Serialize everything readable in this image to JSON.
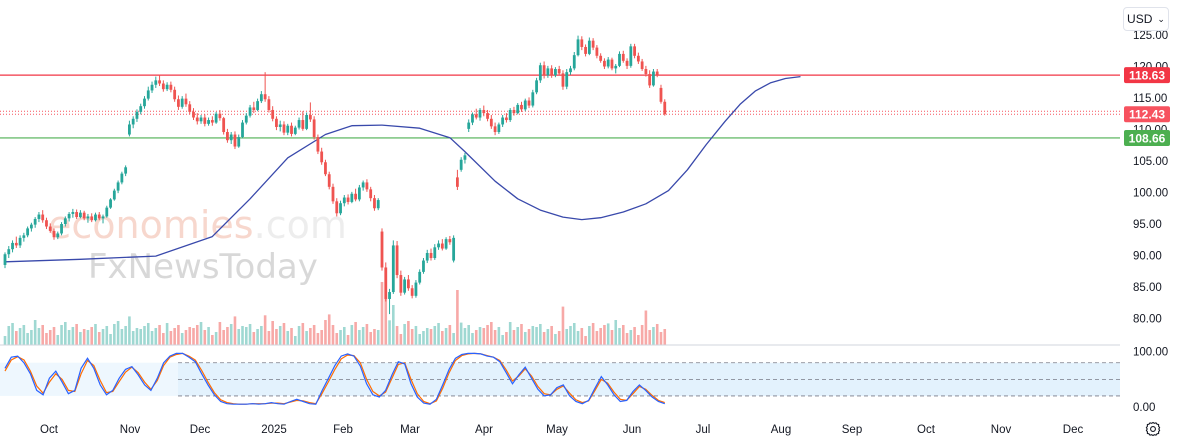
{
  "currency_select": {
    "value": "USD",
    "chevron_icon": "chevron-down-icon"
  },
  "settings_icon": "gear-icon",
  "watermark": {
    "line1_a": "economies",
    "line1_b": ".com",
    "line2": "FxNewsToday"
  },
  "colors": {
    "up": "#26a69a",
    "down": "#ef5350",
    "ma": "#3949ab",
    "resistance": "#f23645",
    "support": "#4caf50",
    "current": "#f7525f",
    "stoch_k": "#2962ff",
    "stoch_d": "#ff6d00",
    "stoch_band": "#e3f2fd",
    "vol_up": "#9fd8d2",
    "vol_down": "#f7a9a7"
  },
  "chart_data": {
    "type": "candlestick",
    "y_axis": {
      "ticks": [
        "125.00",
        "120.00",
        "115.00",
        "110.00",
        "105.00",
        "100.00",
        "95.00",
        "90.00",
        "85.00",
        "80.00"
      ],
      "ylim": [
        78,
        126
      ]
    },
    "x_axis": {
      "labels": [
        "Oct",
        "Nov",
        "Dec",
        "2025",
        "Feb",
        "Mar",
        "Apr",
        "May",
        "Jun",
        "Jul",
        "Aug",
        "Sep",
        "Oct",
        "Nov",
        "Dec"
      ]
    },
    "price_labels": [
      {
        "value": 118.63,
        "text": "118.63",
        "role": "resistance"
      },
      {
        "value": 112.43,
        "text": "112.43",
        "role": "last"
      },
      {
        "value": 108.66,
        "text": "108.66",
        "role": "support"
      }
    ],
    "current_price_dotted_lines": [
      112.43,
      112.9
    ],
    "ohlc": [
      [
        88.5,
        90.5,
        88,
        90.2
      ],
      [
        90.2,
        91.5,
        89.6,
        91
      ],
      [
        91,
        92.4,
        90.5,
        92
      ],
      [
        92,
        93,
        91.2,
        91.6
      ],
      [
        91.6,
        93.2,
        91.2,
        92.8
      ],
      [
        92.8,
        93.6,
        92.2,
        93.2
      ],
      [
        93.2,
        94.6,
        92.9,
        94.3
      ],
      [
        94.3,
        95.2,
        93.8,
        94.9
      ],
      [
        94.9,
        96.1,
        94.4,
        95.8
      ],
      [
        95.8,
        96.9,
        95.3,
        96.5
      ],
      [
        96.5,
        97.2,
        95.2,
        95.6
      ],
      [
        95.6,
        96,
        94.2,
        94.6
      ],
      [
        94.6,
        95.1,
        93.6,
        93.9
      ],
      [
        93.9,
        94.3,
        92.5,
        92.9
      ],
      [
        92.9,
        93.8,
        92.6,
        93.5
      ],
      [
        93.5,
        95.3,
        93.2,
        95
      ],
      [
        95,
        96.2,
        94.6,
        95.9
      ],
      [
        95.9,
        96.9,
        95.4,
        96.6
      ],
      [
        96.6,
        97.4,
        96,
        96.9
      ],
      [
        96.9,
        97.3,
        95.8,
        96.1
      ],
      [
        96.1,
        97.2,
        95.9,
        96.8
      ],
      [
        96.8,
        97.1,
        95.6,
        95.9
      ],
      [
        95.9,
        96.6,
        95.2,
        96.2
      ],
      [
        96.2,
        96.7,
        95.3,
        95.6
      ],
      [
        95.6,
        96.8,
        95.4,
        96.5
      ],
      [
        96.5,
        96.9,
        95.6,
        95.9
      ],
      [
        95.9,
        96.5,
        95.1,
        96.2
      ],
      [
        96.2,
        97.9,
        96,
        97.6
      ],
      [
        97.6,
        99.1,
        97.4,
        98.9
      ],
      [
        98.9,
        100.6,
        98.7,
        100.3
      ],
      [
        100.3,
        101.9,
        99.9,
        101.6
      ],
      [
        101.6,
        103.3,
        101.3,
        103
      ],
      [
        103,
        104.3,
        102.6,
        104
      ],
      [
        109.2,
        111.4,
        108.9,
        110.8
      ],
      [
        110.8,
        112.1,
        110.2,
        111.7
      ],
      [
        111.7,
        113.2,
        111.2,
        112.8
      ],
      [
        112.8,
        114.1,
        112.4,
        113.7
      ],
      [
        113.7,
        115.3,
        113.3,
        114.9
      ],
      [
        114.9,
        116.8,
        114.6,
        116.2
      ],
      [
        116.2,
        117.6,
        115.8,
        117.1
      ],
      [
        117.1,
        118.4,
        116.6,
        117.8
      ],
      [
        117.8,
        118.7,
        116.9,
        117.3
      ],
      [
        117.3,
        117.8,
        116,
        116.4
      ],
      [
        116.4,
        117.5,
        116.1,
        117.1
      ],
      [
        117.1,
        117.6,
        115.9,
        116.3
      ],
      [
        116.3,
        116.8,
        114.4,
        114.8
      ],
      [
        114.8,
        115.4,
        113.1,
        113.6
      ],
      [
        113.6,
        115.3,
        113.3,
        114.9
      ],
      [
        114.9,
        115.7,
        113.6,
        114
      ],
      [
        114,
        114.5,
        112.4,
        112.8
      ],
      [
        112.8,
        113.4,
        111.5,
        111.9
      ],
      [
        111.9,
        112.6,
        110.8,
        111.3
      ],
      [
        111.3,
        112.3,
        110.9,
        111.9
      ],
      [
        111.9,
        112.4,
        110.5,
        110.9
      ],
      [
        110.9,
        111.9,
        110.6,
        111.5
      ],
      [
        111.5,
        112.1,
        110.6,
        111.1
      ],
      [
        111.1,
        112.8,
        110.9,
        112.5
      ],
      [
        112.5,
        113.1,
        111.4,
        111.8
      ],
      [
        111.8,
        112,
        109.2,
        109.6
      ],
      [
        109.6,
        110.1,
        107.9,
        108.3
      ],
      [
        108.3,
        109.6,
        107.7,
        109.2
      ],
      [
        109.2,
        109.7,
        106.9,
        107.3
      ],
      [
        107.3,
        109.2,
        107.1,
        108.8
      ],
      [
        108.8,
        111.5,
        108.6,
        111.1
      ],
      [
        111.1,
        112.6,
        110.8,
        112.2
      ],
      [
        112.2,
        113.9,
        111.9,
        113.5
      ],
      [
        113.5,
        114.4,
        112.6,
        113.1
      ],
      [
        113.1,
        114.9,
        112.9,
        114.5
      ],
      [
        114.5,
        116.1,
        114.2,
        115.6
      ],
      [
        115.6,
        119.1,
        114.4,
        114.8
      ],
      [
        114.8,
        115.3,
        112.7,
        113.1
      ],
      [
        113.1,
        113.7,
        111.3,
        111.7
      ],
      [
        111.7,
        112.1,
        109.9,
        110.4
      ],
      [
        110.4,
        111.4,
        109.7,
        110.8
      ],
      [
        110.8,
        111.3,
        109.1,
        109.5
      ],
      [
        109.5,
        110.9,
        109.1,
        110.6
      ],
      [
        110.6,
        111.1,
        108.9,
        109.3
      ],
      [
        109.3,
        110.6,
        109.1,
        110.3
      ],
      [
        110.3,
        111.9,
        110,
        111.5
      ],
      [
        111.5,
        112.9,
        109.8,
        110.1
      ],
      [
        110.1,
        112.7,
        109.9,
        112.3
      ],
      [
        112.3,
        114.3,
        111.2,
        111.6
      ],
      [
        111.6,
        112.1,
        108.4,
        108.8
      ],
      [
        108.8,
        109.2,
        106.1,
        106.5
      ],
      [
        106.5,
        107.1,
        104.4,
        104.8
      ],
      [
        104.8,
        105.2,
        102.6,
        102.9
      ],
      [
        102.9,
        103.3,
        100.5,
        100.9
      ],
      [
        100.9,
        101.4,
        98.2,
        98.6
      ],
      [
        98.6,
        99.1,
        96.2,
        96.7
      ],
      [
        96.7,
        98.7,
        96.4,
        98.3
      ],
      [
        98.3,
        99.6,
        97.8,
        99.2
      ],
      [
        99.2,
        99.7,
        98.1,
        98.5
      ],
      [
        98.5,
        100.1,
        98.3,
        99.8
      ],
      [
        99.8,
        100.6,
        98.6,
        98.9
      ],
      [
        98.9,
        101.2,
        98.6,
        100.8
      ],
      [
        100.8,
        101.9,
        100.3,
        101.6
      ],
      [
        101.6,
        102.1,
        100.1,
        100.5
      ],
      [
        100.5,
        100.9,
        98.6,
        99.1
      ],
      [
        99.1,
        99.6,
        97.1,
        97.5
      ],
      [
        97.5,
        99.1,
        97.2,
        98.8
      ],
      [
        93.8,
        94.3,
        87.6,
        88.1
      ],
      [
        88.1,
        88.9,
        82.7,
        83.1
      ],
      [
        83.1,
        84.7,
        80.7,
        84.2
      ],
      [
        84.2,
        92.4,
        83.9,
        91.6
      ],
      [
        91.6,
        92.3,
        86.4,
        86.9
      ],
      [
        86.9,
        87.6,
        83.6,
        84.1
      ],
      [
        84.1,
        86.6,
        83.8,
        86.2
      ],
      [
        86.2,
        86.9,
        84.4,
        84.8
      ],
      [
        84.8,
        85.3,
        83.2,
        83.6
      ],
      [
        83.6,
        86.1,
        83.3,
        85.7
      ],
      [
        85.7,
        87.8,
        85.4,
        87.4
      ],
      [
        87.4,
        89.6,
        87.1,
        89.2
      ],
      [
        89.2,
        90.9,
        88.8,
        90.4
      ],
      [
        90.4,
        91.1,
        89.2,
        89.6
      ],
      [
        89.6,
        91.8,
        89.3,
        91.3
      ],
      [
        91.3,
        92.4,
        90.9,
        91.9
      ],
      [
        91.9,
        92.6,
        90.8,
        91.1
      ],
      [
        91.1,
        92.9,
        90.9,
        92.6
      ],
      [
        92.6,
        93.1,
        91.7,
        92.1
      ],
      [
        89.2,
        93.2,
        88.9,
        92.8
      ],
      [
        102.4,
        103.6,
        100.4,
        100.9
      ],
      [
        103.6,
        105.6,
        103.3,
        105.2
      ],
      [
        105.2,
        106.3,
        104.6,
        105.9
      ],
      [
        110.1,
        111.6,
        109.6,
        111.1
      ],
      [
        111.1,
        112.7,
        110.7,
        112.4
      ],
      [
        112.4,
        113.3,
        111.6,
        111.9
      ],
      [
        111.9,
        113.4,
        111.4,
        113.1
      ],
      [
        113.1,
        113.8,
        112.1,
        112.6
      ],
      [
        112.6,
        113.1,
        111.3,
        111.7
      ],
      [
        111.7,
        112.3,
        110.1,
        110.5
      ],
      [
        110.5,
        111.1,
        109.1,
        109.6
      ],
      [
        109.6,
        111.1,
        109.3,
        110.8
      ],
      [
        110.8,
        112.3,
        110.4,
        111.9
      ],
      [
        111.9,
        112.6,
        111.1,
        111.5
      ],
      [
        111.5,
        113.4,
        111.2,
        113.1
      ],
      [
        113.1,
        113.6,
        112.2,
        112.6
      ],
      [
        112.6,
        114.2,
        112.4,
        113.9
      ],
      [
        113.9,
        114.4,
        112.8,
        113.2
      ],
      [
        113.2,
        114.9,
        112.9,
        114.6
      ],
      [
        114.6,
        115.1,
        113.4,
        113.8
      ],
      [
        113.8,
        116.3,
        113.5,
        115.9
      ],
      [
        115.9,
        118.2,
        115.6,
        117.8
      ],
      [
        117.8,
        120.6,
        117.4,
        120.2
      ],
      [
        120.2,
        120.8,
        118.1,
        118.6
      ],
      [
        118.6,
        120.1,
        118.2,
        119.7
      ],
      [
        119.7,
        120.2,
        118.2,
        118.6
      ],
      [
        118.6,
        119.9,
        118.3,
        119.6
      ],
      [
        119.6,
        120.1,
        118.6,
        118.9
      ],
      [
        118.9,
        119.4,
        116.3,
        116.8
      ],
      [
        116.8,
        119.6,
        116.4,
        119.1
      ],
      [
        119.1,
        120.1,
        118.7,
        119.7
      ],
      [
        119.7,
        122.3,
        119.4,
        121.8
      ],
      [
        121.8,
        124.9,
        121.6,
        124.3
      ],
      [
        124.3,
        124.8,
        122.6,
        123.1
      ],
      [
        123.1,
        123.5,
        121.6,
        122
      ],
      [
        122,
        124.6,
        121.8,
        124.1
      ],
      [
        124.1,
        124.5,
        122.6,
        123
      ],
      [
        123,
        123.4,
        121.3,
        121.7
      ],
      [
        121.7,
        122.1,
        120.6,
        120.9
      ],
      [
        120.9,
        121.3,
        119.6,
        120
      ],
      [
        120,
        121.5,
        119.7,
        121.1
      ],
      [
        121.1,
        121.4,
        119.4,
        119.7
      ],
      [
        119.7,
        120.4,
        118.9,
        120.1
      ],
      [
        120.1,
        122.4,
        119.9,
        122
      ],
      [
        122,
        122.5,
        120.6,
        120.9
      ],
      [
        120.9,
        121.3,
        119.6,
        120.1
      ],
      [
        120.1,
        123.6,
        119.8,
        123.2
      ],
      [
        123.2,
        123.6,
        121.3,
        121.7
      ],
      [
        121.7,
        122.2,
        120.4,
        120.8
      ],
      [
        120.8,
        121.2,
        119.3,
        119.6
      ],
      [
        119.6,
        120.1,
        118.4,
        118.8
      ],
      [
        118.8,
        119.4,
        116.6,
        117
      ],
      [
        117,
        119.6,
        116.8,
        119.2
      ],
      [
        119.2,
        119.6,
        118.3,
        118.7
      ],
      [
        116.6,
        117.1,
        114.1,
        114.4
      ],
      [
        114.4,
        114.8,
        112.2,
        112.43
      ]
    ],
    "moving_average": [
      [
        0,
        89
      ],
      [
        20,
        89.4
      ],
      [
        40,
        89.9
      ],
      [
        55,
        93
      ],
      [
        65,
        99
      ],
      [
        75,
        105.5
      ],
      [
        85,
        109.2
      ],
      [
        92,
        110.6
      ],
      [
        100,
        110.7
      ],
      [
        110,
        110.2
      ],
      [
        118,
        108.7
      ],
      [
        122,
        106.5
      ],
      [
        130,
        101.8
      ],
      [
        136,
        99
      ],
      [
        142,
        97.2
      ],
      [
        148,
        96.1
      ],
      [
        153,
        95.7
      ],
      [
        158,
        96
      ],
      [
        164,
        96.9
      ],
      [
        170,
        98.2
      ],
      [
        176,
        100.3
      ],
      [
        181,
        103.6
      ],
      [
        186,
        107.6
      ],
      [
        191,
        111.3
      ],
      [
        195,
        114
      ],
      [
        199,
        116.1
      ],
      [
        203,
        117.4
      ],
      [
        207,
        118.1
      ],
      [
        211,
        118.4
      ]
    ],
    "stochastic": {
      "ylim": [
        0,
        100
      ],
      "ticks": [
        "100.00",
        "0.00"
      ],
      "band": [
        20,
        80
      ],
      "midline": 50,
      "k": [
        70,
        90,
        92,
        80,
        60,
        30,
        22,
        52,
        65,
        45,
        24,
        30,
        70,
        88,
        70,
        40,
        22,
        30,
        52,
        68,
        73,
        58,
        40,
        30,
        52,
        80,
        92,
        97,
        97,
        90,
        82,
        60,
        40,
        22,
        10,
        6,
        5,
        5,
        5,
        6,
        5,
        6,
        8,
        6,
        5,
        10,
        14,
        10,
        6,
        5,
        30,
        52,
        75,
        92,
        96,
        92,
        74,
        42,
        22,
        18,
        30,
        58,
        82,
        78,
        42,
        18,
        7,
        5,
        14,
        40,
        68,
        88,
        95,
        97,
        97,
        96,
        92,
        90,
        82,
        62,
        42,
        58,
        72,
        52,
        32,
        20,
        22,
        35,
        40,
        20,
        10,
        6,
        12,
        34,
        55,
        40,
        22,
        10,
        12,
        28,
        40,
        30,
        18,
        10,
        6
      ],
      "d": [
        65,
        85,
        91,
        85,
        65,
        38,
        25,
        45,
        60,
        50,
        30,
        28,
        60,
        84,
        75,
        48,
        26,
        28,
        46,
        63,
        72,
        62,
        45,
        32,
        48,
        75,
        90,
        95,
        97,
        92,
        85,
        66,
        45,
        26,
        13,
        8,
        6,
        5,
        5,
        6,
        6,
        6,
        7,
        7,
        6,
        9,
        12,
        11,
        8,
        6,
        25,
        46,
        68,
        87,
        94,
        93,
        80,
        50,
        28,
        20,
        27,
        52,
        77,
        80,
        50,
        24,
        10,
        6,
        11,
        34,
        62,
        84,
        93,
        96,
        97,
        96,
        93,
        90,
        84,
        67,
        47,
        56,
        69,
        56,
        37,
        24,
        22,
        32,
        38,
        25,
        13,
        8,
        11,
        30,
        50,
        43,
        27,
        14,
        12,
        24,
        37,
        32,
        21,
        12,
        8
      ]
    }
  }
}
